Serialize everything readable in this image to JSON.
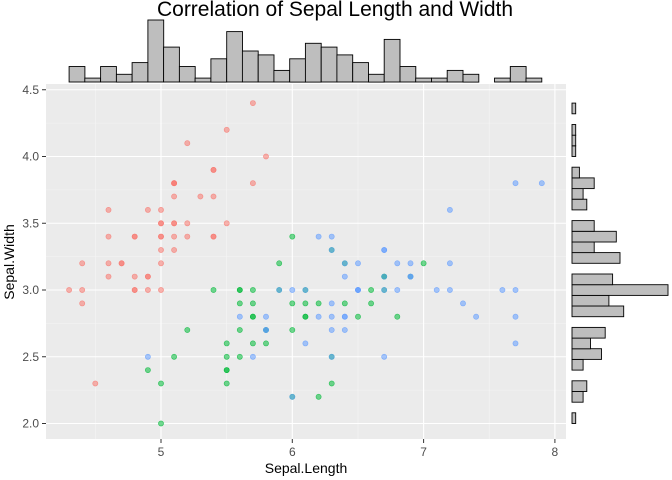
{
  "chart_data": {
    "type": "scatter",
    "title": "Correlation of Sepal Length and Width",
    "xlabel": "Sepal.Length",
    "ylabel": "Sepal.Width",
    "xlim": [
      4.3,
      7.9
    ],
    "ylim": [
      2.0,
      4.4
    ],
    "x_ticks": [
      "5",
      "6",
      "7",
      "8"
    ],
    "y_ticks": [
      "2.0",
      "2.5",
      "3.0",
      "3.5",
      "4.0",
      "4.5"
    ],
    "grid": true,
    "legend": "none",
    "marginal": "histogram",
    "series": [
      {
        "color": "#F8766D",
        "points": [
          [
            5.1,
            3.5
          ],
          [
            4.9,
            3.0
          ],
          [
            4.7,
            3.2
          ],
          [
            4.6,
            3.1
          ],
          [
            5.0,
            3.6
          ],
          [
            5.4,
            3.9
          ],
          [
            4.6,
            3.4
          ],
          [
            5.0,
            3.4
          ],
          [
            4.4,
            2.9
          ],
          [
            4.9,
            3.1
          ],
          [
            5.4,
            3.7
          ],
          [
            4.8,
            3.4
          ],
          [
            4.8,
            3.0
          ],
          [
            4.3,
            3.0
          ],
          [
            5.8,
            4.0
          ],
          [
            5.7,
            4.4
          ],
          [
            5.4,
            3.9
          ],
          [
            5.1,
            3.5
          ],
          [
            5.7,
            3.8
          ],
          [
            5.1,
            3.8
          ],
          [
            5.4,
            3.4
          ],
          [
            5.1,
            3.7
          ],
          [
            4.6,
            3.6
          ],
          [
            5.1,
            3.3
          ],
          [
            4.8,
            3.4
          ],
          [
            5.0,
            3.0
          ],
          [
            5.0,
            3.4
          ],
          [
            5.2,
            3.5
          ],
          [
            5.2,
            3.4
          ],
          [
            4.7,
            3.2
          ],
          [
            4.8,
            3.1
          ],
          [
            5.4,
            3.4
          ],
          [
            5.2,
            4.1
          ],
          [
            5.5,
            4.2
          ],
          [
            4.9,
            3.1
          ],
          [
            5.0,
            3.2
          ],
          [
            5.5,
            3.5
          ],
          [
            4.9,
            3.6
          ],
          [
            4.4,
            3.0
          ],
          [
            5.1,
            3.4
          ],
          [
            5.0,
            3.5
          ],
          [
            4.5,
            2.3
          ],
          [
            4.4,
            3.2
          ],
          [
            5.0,
            3.5
          ],
          [
            5.1,
            3.8
          ],
          [
            4.8,
            3.0
          ],
          [
            5.1,
            3.8
          ],
          [
            4.6,
            3.2
          ],
          [
            5.3,
            3.7
          ],
          [
            5.0,
            3.3
          ]
        ]
      },
      {
        "color": "#00BA38",
        "points": [
          [
            7.0,
            3.2
          ],
          [
            6.4,
            3.2
          ],
          [
            6.9,
            3.1
          ],
          [
            5.5,
            2.3
          ],
          [
            6.5,
            2.8
          ],
          [
            5.7,
            2.8
          ],
          [
            6.3,
            3.3
          ],
          [
            4.9,
            2.4
          ],
          [
            6.6,
            2.9
          ],
          [
            5.2,
            2.7
          ],
          [
            5.0,
            2.0
          ],
          [
            5.9,
            3.0
          ],
          [
            6.0,
            2.2
          ],
          [
            6.1,
            2.9
          ],
          [
            5.6,
            2.9
          ],
          [
            6.7,
            3.1
          ],
          [
            5.6,
            3.0
          ],
          [
            5.8,
            2.7
          ],
          [
            6.2,
            2.2
          ],
          [
            5.6,
            2.5
          ],
          [
            5.9,
            3.2
          ],
          [
            6.1,
            2.8
          ],
          [
            6.3,
            2.5
          ],
          [
            6.1,
            2.8
          ],
          [
            6.4,
            2.9
          ],
          [
            6.6,
            3.0
          ],
          [
            6.8,
            2.8
          ],
          [
            6.7,
            3.0
          ],
          [
            6.0,
            2.9
          ],
          [
            5.7,
            2.6
          ],
          [
            5.5,
            2.4
          ],
          [
            5.5,
            2.4
          ],
          [
            5.8,
            2.7
          ],
          [
            6.0,
            2.7
          ],
          [
            5.4,
            3.0
          ],
          [
            6.0,
            3.4
          ],
          [
            6.7,
            3.1
          ],
          [
            6.3,
            2.3
          ],
          [
            5.6,
            3.0
          ],
          [
            5.5,
            2.5
          ],
          [
            5.5,
            2.6
          ],
          [
            6.1,
            3.0
          ],
          [
            5.8,
            2.6
          ],
          [
            5.0,
            2.3
          ],
          [
            5.6,
            2.7
          ],
          [
            5.7,
            3.0
          ],
          [
            5.7,
            2.9
          ],
          [
            6.2,
            2.9
          ],
          [
            5.1,
            2.5
          ],
          [
            5.7,
            2.8
          ]
        ]
      },
      {
        "color": "#619CFF",
        "points": [
          [
            6.3,
            3.3
          ],
          [
            5.8,
            2.7
          ],
          [
            7.1,
            3.0
          ],
          [
            6.3,
            2.9
          ],
          [
            6.5,
            3.0
          ],
          [
            7.6,
            3.0
          ],
          [
            4.9,
            2.5
          ],
          [
            7.3,
            2.9
          ],
          [
            6.7,
            2.5
          ],
          [
            7.2,
            3.6
          ],
          [
            6.5,
            3.2
          ],
          [
            6.4,
            2.7
          ],
          [
            6.8,
            3.0
          ],
          [
            5.7,
            2.5
          ],
          [
            5.8,
            2.8
          ],
          [
            6.4,
            3.2
          ],
          [
            6.5,
            3.0
          ],
          [
            7.7,
            3.8
          ],
          [
            7.7,
            2.6
          ],
          [
            6.0,
            2.2
          ],
          [
            6.9,
            3.2
          ],
          [
            5.6,
            2.8
          ],
          [
            7.7,
            2.8
          ],
          [
            6.3,
            2.7
          ],
          [
            6.7,
            3.3
          ],
          [
            7.2,
            3.2
          ],
          [
            6.2,
            2.8
          ],
          [
            6.1,
            3.0
          ],
          [
            6.4,
            2.8
          ],
          [
            7.2,
            3.0
          ],
          [
            7.4,
            2.8
          ],
          [
            7.9,
            3.8
          ],
          [
            6.4,
            2.8
          ],
          [
            6.3,
            2.8
          ],
          [
            6.1,
            2.6
          ],
          [
            7.7,
            3.0
          ],
          [
            6.3,
            3.4
          ],
          [
            6.4,
            3.1
          ],
          [
            6.0,
            3.0
          ],
          [
            6.9,
            3.1
          ],
          [
            6.7,
            3.1
          ],
          [
            6.9,
            3.1
          ],
          [
            5.8,
            2.7
          ],
          [
            6.8,
            3.2
          ],
          [
            6.7,
            3.3
          ],
          [
            6.7,
            3.0
          ],
          [
            6.3,
            2.5
          ],
          [
            6.5,
            3.0
          ],
          [
            6.2,
            3.4
          ],
          [
            5.9,
            3.0
          ]
        ]
      }
    ],
    "marginal_x_bins": 30,
    "marginal_y_bins": 30
  }
}
